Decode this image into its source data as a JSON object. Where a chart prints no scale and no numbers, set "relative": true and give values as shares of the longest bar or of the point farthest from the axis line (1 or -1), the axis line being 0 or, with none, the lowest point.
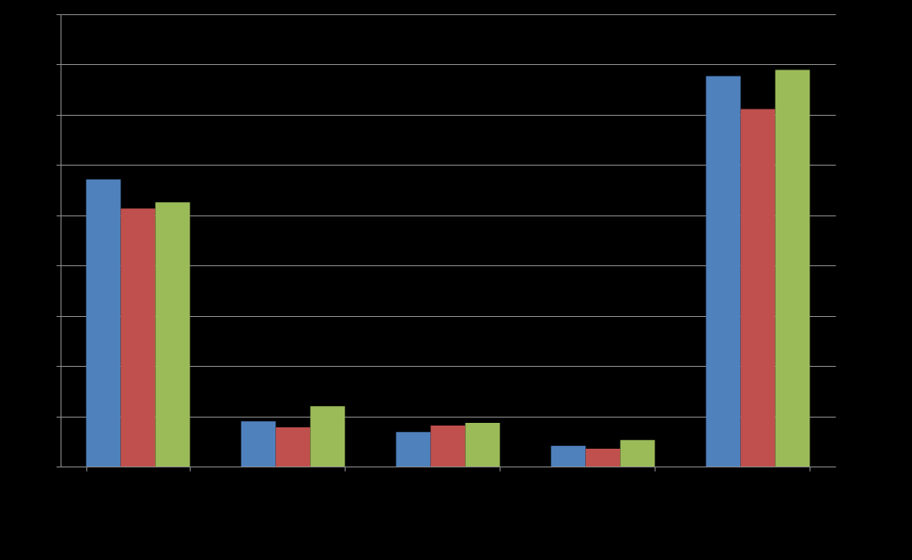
{
  "chart_data": {
    "type": "bar",
    "relative": true,
    "grid": true,
    "categories": [
      null,
      null,
      null,
      null,
      null
    ],
    "series": [
      {
        "color": "#4f81bd",
        "values": [
          0.724,
          0.114,
          0.087,
          0.052,
          0.984
        ]
      },
      {
        "color": "#c0504d",
        "values": [
          0.65,
          0.099,
          0.103,
          0.045,
          0.901
        ]
      },
      {
        "color": "#9bbb59",
        "values": [
          0.666,
          0.152,
          0.11,
          0.067,
          1
        ]
      }
    ]
  }
}
